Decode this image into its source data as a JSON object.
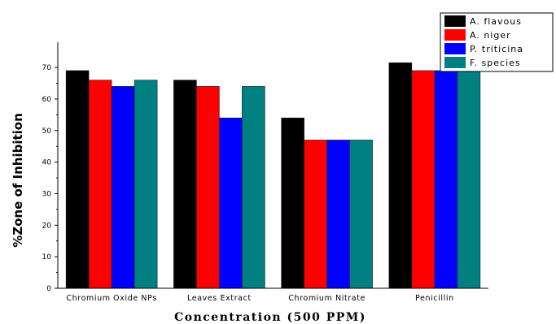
{
  "chart_data": {
    "type": "bar",
    "xlabel": "Concentration (500 PPM)",
    "ylabel": "%Zone of Inhibition",
    "ylim": [
      0,
      78
    ],
    "yticks": [
      0,
      10,
      20,
      30,
      40,
      50,
      60,
      70
    ],
    "categories": [
      "Chromium Oxide NPs",
      "Leaves Extract",
      "Chromium Nitrate",
      "Penicillin"
    ],
    "series": [
      {
        "name": "A. flavous",
        "color": "#000000",
        "values": [
          69,
          66,
          54,
          71.5
        ]
      },
      {
        "name": "A. niger",
        "color": "#ff0000",
        "values": [
          66,
          64,
          47,
          69
        ]
      },
      {
        "name": "P. triticina",
        "color": "#0000ff",
        "values": [
          64,
          54,
          47,
          69
        ]
      },
      {
        "name": "F. species",
        "color": "#008080",
        "values": [
          66,
          64,
          47,
          69
        ]
      }
    ],
    "legend_position": "top-right",
    "grid": false
  }
}
